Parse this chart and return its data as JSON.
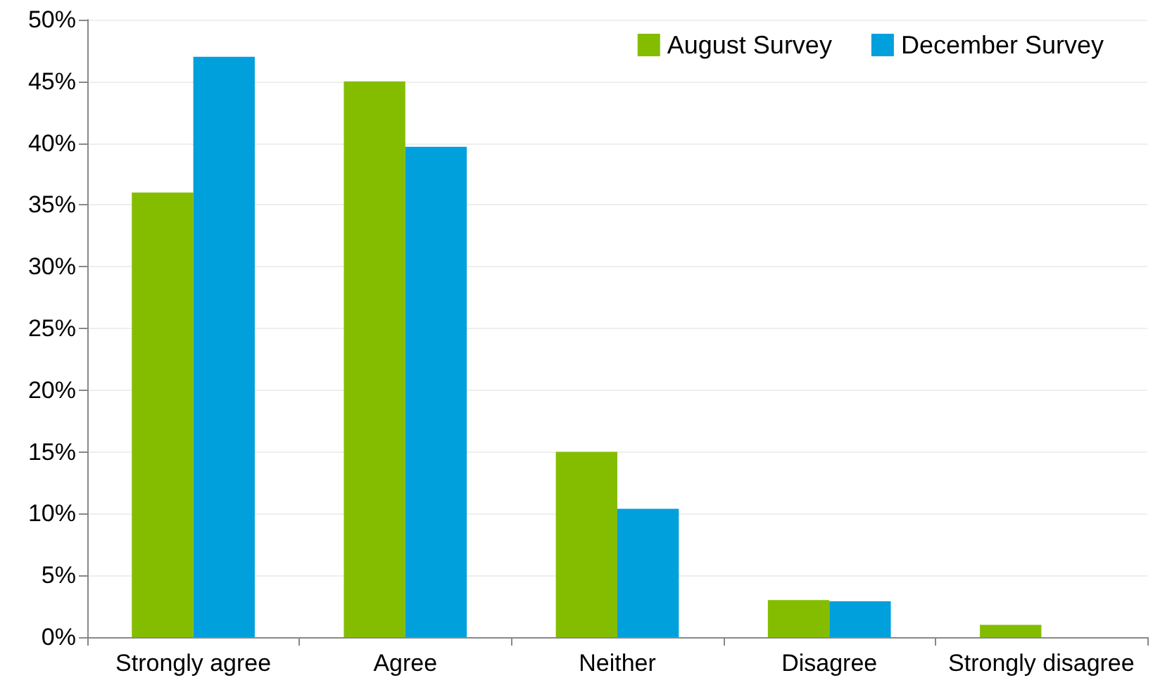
{
  "chart_data": {
    "type": "bar",
    "categories": [
      "Strongly agree",
      "Agree",
      "Neither",
      "Disagree",
      "Strongly disagree"
    ],
    "series": [
      {
        "name": "August Survey",
        "color": "#84bd00",
        "values": [
          36,
          45,
          15,
          3,
          1
        ]
      },
      {
        "name": "December Survey",
        "color": "#00a0dc",
        "values": [
          47,
          39.7,
          10.4,
          2.9,
          0
        ]
      }
    ],
    "ylim": [
      0,
      50
    ],
    "yticks": [
      {
        "value": 0,
        "label": "0%"
      },
      {
        "value": 5,
        "label": "5%"
      },
      {
        "value": 10,
        "label": "10%"
      },
      {
        "value": 15,
        "label": "15%"
      },
      {
        "value": 20,
        "label": "20%"
      },
      {
        "value": 25,
        "label": "25%"
      },
      {
        "value": 30,
        "label": "30%"
      },
      {
        "value": 35,
        "label": "35%"
      },
      {
        "value": 40,
        "label": "40%"
      },
      {
        "value": 45,
        "label": "45%"
      },
      {
        "value": 50,
        "label": "50%"
      }
    ],
    "grid": "y",
    "legend": "top right"
  }
}
